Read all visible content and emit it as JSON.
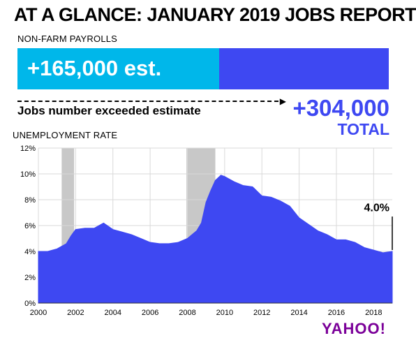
{
  "title": "AT A GLANCE: JANUARY 2019 JOBS REPORT",
  "payrolls": {
    "label": "NON-FARM PAYROLLS",
    "estimate_text": "+165,000 est.",
    "estimate_value": 165000,
    "total_value": 304000,
    "exceeded_text": "Jobs number exceeded estimate",
    "total_text": "+304,000",
    "total_word": "TOTAL",
    "colors": {
      "estimate": "#00b7ea",
      "total": "#3e48f2"
    }
  },
  "chart_data": {
    "type": "area",
    "title": "UNEMPLOYMENT RATE",
    "xlabel": "",
    "ylabel": "",
    "xlim": [
      2000,
      2019
    ],
    "ylim": [
      0,
      12
    ],
    "x_ticks": [
      2000,
      2002,
      2004,
      2006,
      2008,
      2010,
      2012,
      2014,
      2016,
      2018
    ],
    "y_ticks": [
      0,
      2,
      4,
      6,
      8,
      10,
      12
    ],
    "y_tick_labels": [
      "0%",
      "2%",
      "4%",
      "6%",
      "8%",
      "10%",
      "12%"
    ],
    "recessions": [
      [
        2001.25,
        2001.92
      ],
      [
        2007.95,
        2009.5
      ]
    ],
    "grid": true,
    "series": [
      {
        "x": [
          2000.0,
          2000.5,
          2001.0,
          2001.5,
          2001.75,
          2002.0,
          2002.5,
          2003.0,
          2003.5,
          2004.0,
          2004.5,
          2005.0,
          2005.5,
          2006.0,
          2006.5,
          2007.0,
          2007.5,
          2008.0,
          2008.5,
          2008.75,
          2009.0,
          2009.25,
          2009.5,
          2009.8,
          2010.0,
          2010.5,
          2011.0,
          2011.5,
          2012.0,
          2012.5,
          2013.0,
          2013.5,
          2014.0,
          2014.5,
          2015.0,
          2015.5,
          2016.0,
          2016.5,
          2017.0,
          2017.5,
          2018.0,
          2018.5,
          2019.0
        ],
        "values": [
          4.0,
          4.0,
          4.2,
          4.6,
          5.2,
          5.7,
          5.8,
          5.8,
          6.2,
          5.7,
          5.5,
          5.3,
          5.0,
          4.7,
          4.6,
          4.6,
          4.7,
          5.0,
          5.6,
          6.2,
          7.8,
          8.7,
          9.5,
          9.9,
          9.8,
          9.4,
          9.1,
          9.0,
          8.3,
          8.2,
          7.9,
          7.5,
          6.6,
          6.1,
          5.6,
          5.3,
          4.9,
          4.9,
          4.7,
          4.3,
          4.1,
          3.9,
          4.0
        ],
        "color": "#3e48f2"
      }
    ],
    "annotation": {
      "text": "4.0%",
      "x": 2019.0,
      "y": 4.0
    }
  },
  "logo": {
    "text": "YAHOO!"
  }
}
